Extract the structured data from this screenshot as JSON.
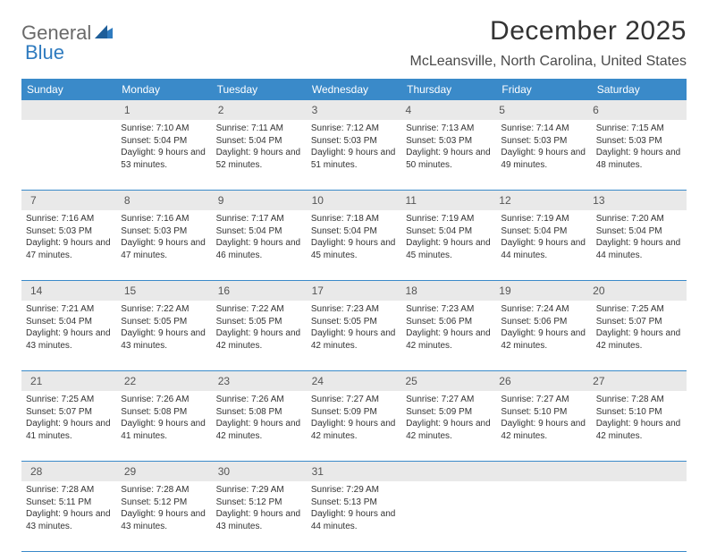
{
  "logo": {
    "part1": "General",
    "part2": "Blue"
  },
  "title": "December 2025",
  "location": "McLeansville, North Carolina, United States",
  "header_bg": "#3a8ac9",
  "daynum_bg": "#e9e9e9",
  "text_color": "#333333",
  "days_of_week": [
    "Sunday",
    "Monday",
    "Tuesday",
    "Wednesday",
    "Thursday",
    "Friday",
    "Saturday"
  ],
  "weeks": [
    {
      "nums": [
        "",
        "1",
        "2",
        "3",
        "4",
        "5",
        "6"
      ],
      "cells": [
        null,
        {
          "sr": "Sunrise: 7:10 AM",
          "ss": "Sunset: 5:04 PM",
          "dl": "Daylight: 9 hours and 53 minutes."
        },
        {
          "sr": "Sunrise: 7:11 AM",
          "ss": "Sunset: 5:04 PM",
          "dl": "Daylight: 9 hours and 52 minutes."
        },
        {
          "sr": "Sunrise: 7:12 AM",
          "ss": "Sunset: 5:03 PM",
          "dl": "Daylight: 9 hours and 51 minutes."
        },
        {
          "sr": "Sunrise: 7:13 AM",
          "ss": "Sunset: 5:03 PM",
          "dl": "Daylight: 9 hours and 50 minutes."
        },
        {
          "sr": "Sunrise: 7:14 AM",
          "ss": "Sunset: 5:03 PM",
          "dl": "Daylight: 9 hours and 49 minutes."
        },
        {
          "sr": "Sunrise: 7:15 AM",
          "ss": "Sunset: 5:03 PM",
          "dl": "Daylight: 9 hours and 48 minutes."
        }
      ]
    },
    {
      "nums": [
        "7",
        "8",
        "9",
        "10",
        "11",
        "12",
        "13"
      ],
      "cells": [
        {
          "sr": "Sunrise: 7:16 AM",
          "ss": "Sunset: 5:03 PM",
          "dl": "Daylight: 9 hours and 47 minutes."
        },
        {
          "sr": "Sunrise: 7:16 AM",
          "ss": "Sunset: 5:03 PM",
          "dl": "Daylight: 9 hours and 47 minutes."
        },
        {
          "sr": "Sunrise: 7:17 AM",
          "ss": "Sunset: 5:04 PM",
          "dl": "Daylight: 9 hours and 46 minutes."
        },
        {
          "sr": "Sunrise: 7:18 AM",
          "ss": "Sunset: 5:04 PM",
          "dl": "Daylight: 9 hours and 45 minutes."
        },
        {
          "sr": "Sunrise: 7:19 AM",
          "ss": "Sunset: 5:04 PM",
          "dl": "Daylight: 9 hours and 45 minutes."
        },
        {
          "sr": "Sunrise: 7:19 AM",
          "ss": "Sunset: 5:04 PM",
          "dl": "Daylight: 9 hours and 44 minutes."
        },
        {
          "sr": "Sunrise: 7:20 AM",
          "ss": "Sunset: 5:04 PM",
          "dl": "Daylight: 9 hours and 44 minutes."
        }
      ]
    },
    {
      "nums": [
        "14",
        "15",
        "16",
        "17",
        "18",
        "19",
        "20"
      ],
      "cells": [
        {
          "sr": "Sunrise: 7:21 AM",
          "ss": "Sunset: 5:04 PM",
          "dl": "Daylight: 9 hours and 43 minutes."
        },
        {
          "sr": "Sunrise: 7:22 AM",
          "ss": "Sunset: 5:05 PM",
          "dl": "Daylight: 9 hours and 43 minutes."
        },
        {
          "sr": "Sunrise: 7:22 AM",
          "ss": "Sunset: 5:05 PM",
          "dl": "Daylight: 9 hours and 42 minutes."
        },
        {
          "sr": "Sunrise: 7:23 AM",
          "ss": "Sunset: 5:05 PM",
          "dl": "Daylight: 9 hours and 42 minutes."
        },
        {
          "sr": "Sunrise: 7:23 AM",
          "ss": "Sunset: 5:06 PM",
          "dl": "Daylight: 9 hours and 42 minutes."
        },
        {
          "sr": "Sunrise: 7:24 AM",
          "ss": "Sunset: 5:06 PM",
          "dl": "Daylight: 9 hours and 42 minutes."
        },
        {
          "sr": "Sunrise: 7:25 AM",
          "ss": "Sunset: 5:07 PM",
          "dl": "Daylight: 9 hours and 42 minutes."
        }
      ]
    },
    {
      "nums": [
        "21",
        "22",
        "23",
        "24",
        "25",
        "26",
        "27"
      ],
      "cells": [
        {
          "sr": "Sunrise: 7:25 AM",
          "ss": "Sunset: 5:07 PM",
          "dl": "Daylight: 9 hours and 41 minutes."
        },
        {
          "sr": "Sunrise: 7:26 AM",
          "ss": "Sunset: 5:08 PM",
          "dl": "Daylight: 9 hours and 41 minutes."
        },
        {
          "sr": "Sunrise: 7:26 AM",
          "ss": "Sunset: 5:08 PM",
          "dl": "Daylight: 9 hours and 42 minutes."
        },
        {
          "sr": "Sunrise: 7:27 AM",
          "ss": "Sunset: 5:09 PM",
          "dl": "Daylight: 9 hours and 42 minutes."
        },
        {
          "sr": "Sunrise: 7:27 AM",
          "ss": "Sunset: 5:09 PM",
          "dl": "Daylight: 9 hours and 42 minutes."
        },
        {
          "sr": "Sunrise: 7:27 AM",
          "ss": "Sunset: 5:10 PM",
          "dl": "Daylight: 9 hours and 42 minutes."
        },
        {
          "sr": "Sunrise: 7:28 AM",
          "ss": "Sunset: 5:10 PM",
          "dl": "Daylight: 9 hours and 42 minutes."
        }
      ]
    },
    {
      "nums": [
        "28",
        "29",
        "30",
        "31",
        "",
        "",
        ""
      ],
      "cells": [
        {
          "sr": "Sunrise: 7:28 AM",
          "ss": "Sunset: 5:11 PM",
          "dl": "Daylight: 9 hours and 43 minutes."
        },
        {
          "sr": "Sunrise: 7:28 AM",
          "ss": "Sunset: 5:12 PM",
          "dl": "Daylight: 9 hours and 43 minutes."
        },
        {
          "sr": "Sunrise: 7:29 AM",
          "ss": "Sunset: 5:12 PM",
          "dl": "Daylight: 9 hours and 43 minutes."
        },
        {
          "sr": "Sunrise: 7:29 AM",
          "ss": "Sunset: 5:13 PM",
          "dl": "Daylight: 9 hours and 44 minutes."
        },
        null,
        null,
        null
      ]
    }
  ]
}
